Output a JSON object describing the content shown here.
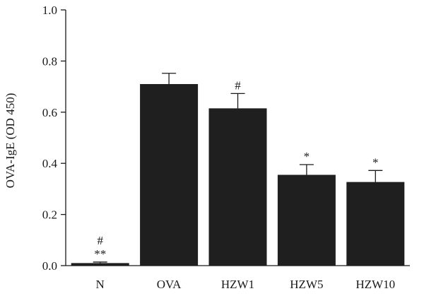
{
  "chart_data": {
    "type": "bar",
    "title": "",
    "xlabel": "",
    "ylabel": "OVA-IgE (OD 450)",
    "ylim": [
      0,
      1.0
    ],
    "yticks": [
      0.0,
      0.2,
      0.4,
      0.6,
      0.8,
      1.0
    ],
    "ytick_labels": [
      "0.0",
      "0.2",
      "0.4",
      "0.6",
      "0.8",
      "1.0"
    ],
    "grid": false,
    "bar_color": "#1f1f1f",
    "categories": [
      "N",
      "OVA",
      "HZW1",
      "HZW5",
      "HZW10"
    ],
    "values": [
      0.01,
      0.71,
      0.615,
      0.355,
      0.327
    ],
    "errors": [
      0.004,
      0.042,
      0.058,
      0.04,
      0.045
    ],
    "annotations": [
      [
        "#",
        "**"
      ],
      [],
      [
        "#"
      ],
      [
        "*"
      ],
      [
        "*"
      ]
    ]
  }
}
